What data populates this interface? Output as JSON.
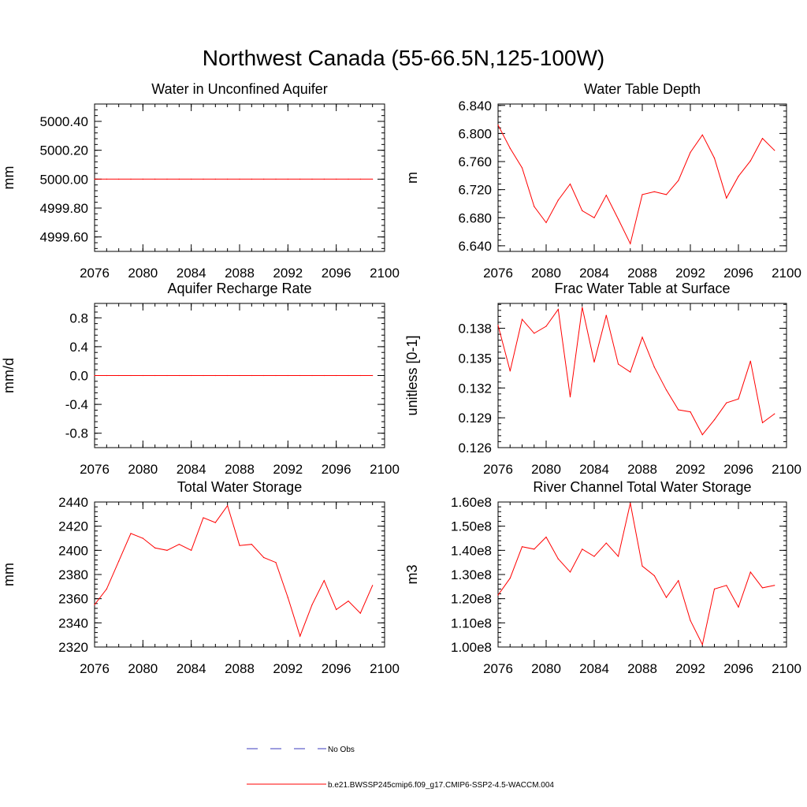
{
  "figure": {
    "title": "Northwest Canada (55-66.5N,125-100W)",
    "line_color": "#ff0000",
    "obs_color": "#3b3bbd"
  },
  "legend": {
    "obs_label": "No Obs",
    "model_label": "b.e21.BWSSP245cmip6.f09_g17.CMIP6-SSP2-4.5-WACCM.004"
  },
  "chart_data": [
    {
      "type": "line",
      "title": "Water in Unconfined Aquifer",
      "xlabel": "",
      "ylabel": "mm",
      "xlim": [
        2076,
        2100
      ],
      "ylim": [
        4999.5,
        5000.52
      ],
      "xticks": [
        2076,
        2080,
        2084,
        2088,
        2092,
        2096,
        2100
      ],
      "xtick_labels": [
        "2076",
        "2080",
        "2084",
        "2088",
        "2092",
        "2096",
        "2100"
      ],
      "yticks": [
        4999.6,
        4999.8,
        5000.0,
        5000.2,
        5000.4
      ],
      "ytick_labels": [
        "4999.60",
        "4999.80",
        "5000.00",
        "5000.20",
        "5000.40"
      ],
      "minor_x": 1,
      "minor_y": 0.04,
      "series": [
        {
          "x": [
            2076,
            2077,
            2078,
            2079,
            2080,
            2081,
            2082,
            2083,
            2084,
            2085,
            2086,
            2087,
            2088,
            2089,
            2090,
            2091,
            2092,
            2093,
            2094,
            2095,
            2096,
            2097,
            2098,
            2099
          ],
          "values": [
            5000.0,
            5000.0,
            5000.0,
            5000.0,
            5000.0,
            5000.0,
            5000.0,
            5000.0,
            5000.0,
            5000.0,
            5000.0,
            5000.0,
            5000.0,
            5000.0,
            5000.0,
            5000.0,
            5000.0,
            5000.0,
            5000.0,
            5000.0,
            5000.0,
            5000.0,
            5000.0,
            5000.0
          ]
        }
      ]
    },
    {
      "type": "line",
      "title": "Water Table Depth",
      "xlabel": "",
      "ylabel": "m",
      "xlim": [
        2076,
        2100
      ],
      "ylim": [
        6.632,
        6.842
      ],
      "xticks": [
        2076,
        2080,
        2084,
        2088,
        2092,
        2096,
        2100
      ],
      "xtick_labels": [
        "2076",
        "2080",
        "2084",
        "2088",
        "2092",
        "2096",
        "2100"
      ],
      "yticks": [
        6.64,
        6.68,
        6.72,
        6.76,
        6.8,
        6.84
      ],
      "ytick_labels": [
        "6.640",
        "6.680",
        "6.720",
        "6.760",
        "6.800",
        "6.840"
      ],
      "minor_x": 1,
      "minor_y": 0.008,
      "series": [
        {
          "x": [
            2076,
            2077,
            2078,
            2079,
            2080,
            2081,
            2082,
            2083,
            2084,
            2085,
            2086,
            2087,
            2088,
            2089,
            2090,
            2091,
            2092,
            2093,
            2094,
            2095,
            2096,
            2097,
            2098,
            2099
          ],
          "values": [
            6.812,
            6.779,
            6.751,
            6.696,
            6.673,
            6.705,
            6.728,
            6.69,
            6.68,
            6.712,
            6.678,
            6.643,
            6.713,
            6.717,
            6.713,
            6.733,
            6.773,
            6.798,
            6.765,
            6.708,
            6.739,
            6.761,
            6.793,
            6.776
          ]
        }
      ]
    },
    {
      "type": "line",
      "title": "Aquifer Recharge Rate",
      "xlabel": "",
      "ylabel": "mm/d",
      "xlim": [
        2076,
        2100
      ],
      "ylim": [
        -1.0,
        1.0
      ],
      "xticks": [
        2076,
        2080,
        2084,
        2088,
        2092,
        2096,
        2100
      ],
      "xtick_labels": [
        "2076",
        "2080",
        "2084",
        "2088",
        "2092",
        "2096",
        "2100"
      ],
      "yticks": [
        -0.8,
        -0.4,
        0.0,
        0.4,
        0.8
      ],
      "ytick_labels": [
        "-0.8",
        "-0.4",
        "0.0",
        "0.4",
        "0.8"
      ],
      "minor_x": 1,
      "minor_y": 0.08,
      "series": [
        {
          "x": [
            2076,
            2077,
            2078,
            2079,
            2080,
            2081,
            2082,
            2083,
            2084,
            2085,
            2086,
            2087,
            2088,
            2089,
            2090,
            2091,
            2092,
            2093,
            2094,
            2095,
            2096,
            2097,
            2098,
            2099
          ],
          "values": [
            0,
            0,
            0,
            0,
            0,
            0,
            0,
            0,
            0,
            0,
            0,
            0,
            0,
            0,
            0,
            0,
            0,
            0,
            0,
            0,
            0,
            0,
            0,
            0
          ]
        }
      ]
    },
    {
      "type": "line",
      "title": "Frac Water Table at Surface",
      "xlabel": "",
      "ylabel": "unitless [0-1]",
      "xlim": [
        2076,
        2100
      ],
      "ylim": [
        0.126,
        0.1405
      ],
      "xticks": [
        2076,
        2080,
        2084,
        2088,
        2092,
        2096,
        2100
      ],
      "xtick_labels": [
        "2076",
        "2080",
        "2084",
        "2088",
        "2092",
        "2096",
        "2100"
      ],
      "yticks": [
        0.126,
        0.129,
        0.132,
        0.135,
        0.138
      ],
      "ytick_labels": [
        "0.126",
        "0.129",
        "0.132",
        "0.135",
        "0.138"
      ],
      "minor_x": 1,
      "minor_y": 0.0006,
      "series": [
        {
          "x": [
            2076,
            2077,
            2078,
            2079,
            2080,
            2081,
            2082,
            2083,
            2084,
            2085,
            2086,
            2087,
            2088,
            2089,
            2090,
            2091,
            2092,
            2093,
            2094,
            2095,
            2096,
            2097,
            2098,
            2099
          ],
          "values": [
            0.1383,
            0.1337,
            0.1389,
            0.1375,
            0.1382,
            0.1399,
            0.1311,
            0.1401,
            0.1346,
            0.1393,
            0.1344,
            0.1336,
            0.1371,
            0.1341,
            0.1318,
            0.1298,
            0.1296,
            0.1273,
            0.1288,
            0.1305,
            0.1309,
            0.1347,
            0.1285,
            0.1294
          ]
        }
      ]
    },
    {
      "type": "line",
      "title": "Total Water Storage",
      "xlabel": "",
      "ylabel": "mm",
      "xlim": [
        2076,
        2100
      ],
      "ylim": [
        2320,
        2440
      ],
      "xticks": [
        2076,
        2080,
        2084,
        2088,
        2092,
        2096,
        2100
      ],
      "xtick_labels": [
        "2076",
        "2080",
        "2084",
        "2088",
        "2092",
        "2096",
        "2100"
      ],
      "yticks": [
        2320,
        2340,
        2360,
        2380,
        2400,
        2420,
        2440
      ],
      "ytick_labels": [
        "2320",
        "2340",
        "2360",
        "2380",
        "2400",
        "2420",
        "2440"
      ],
      "minor_x": 1,
      "minor_y": 4,
      "series": [
        {
          "x": [
            2076,
            2077,
            2078,
            2079,
            2080,
            2081,
            2082,
            2083,
            2084,
            2085,
            2086,
            2087,
            2088,
            2089,
            2090,
            2091,
            2092,
            2093,
            2094,
            2095,
            2096,
            2097,
            2098,
            2099
          ],
          "values": [
            2355,
            2368,
            2391,
            2414,
            2410,
            2402,
            2400,
            2405,
            2400,
            2427,
            2423,
            2437,
            2404,
            2405,
            2394,
            2390,
            2361,
            2329,
            2355,
            2375,
            2351,
            2358,
            2348,
            2371
          ]
        }
      ]
    },
    {
      "type": "line",
      "title": "River Channel Total Water Storage",
      "xlabel": "",
      "ylabel": "m3",
      "xlim": [
        2076,
        2100
      ],
      "ylim": [
        100000000,
        160000000
      ],
      "xticks": [
        2076,
        2080,
        2084,
        2088,
        2092,
        2096,
        2100
      ],
      "xtick_labels": [
        "2076",
        "2080",
        "2084",
        "2088",
        "2092",
        "2096",
        "2100"
      ],
      "yticks": [
        100000000,
        110000000,
        120000000,
        130000000,
        140000000,
        150000000,
        160000000
      ],
      "ytick_labels": [
        "1.00e8",
        "1.10e8",
        "1.20e8",
        "1.30e8",
        "1.40e8",
        "1.50e8",
        "1.60e8"
      ],
      "minor_x": 1,
      "minor_y": 2000000,
      "series": [
        {
          "x": [
            2076,
            2077,
            2078,
            2079,
            2080,
            2081,
            2082,
            2083,
            2084,
            2085,
            2086,
            2087,
            2088,
            2089,
            2090,
            2091,
            2092,
            2093,
            2094,
            2095,
            2096,
            2097,
            2098,
            2099
          ],
          "values": [
            121500000,
            128500000,
            141500000,
            140500000,
            145500000,
            136500000,
            131000000,
            140500000,
            137500000,
            143000000,
            137500000,
            159500000,
            133500000,
            129500000,
            120500000,
            127500000,
            111000000,
            101000000,
            124000000,
            125500000,
            116500000,
            131000000,
            124500000,
            125500000
          ]
        }
      ]
    }
  ]
}
